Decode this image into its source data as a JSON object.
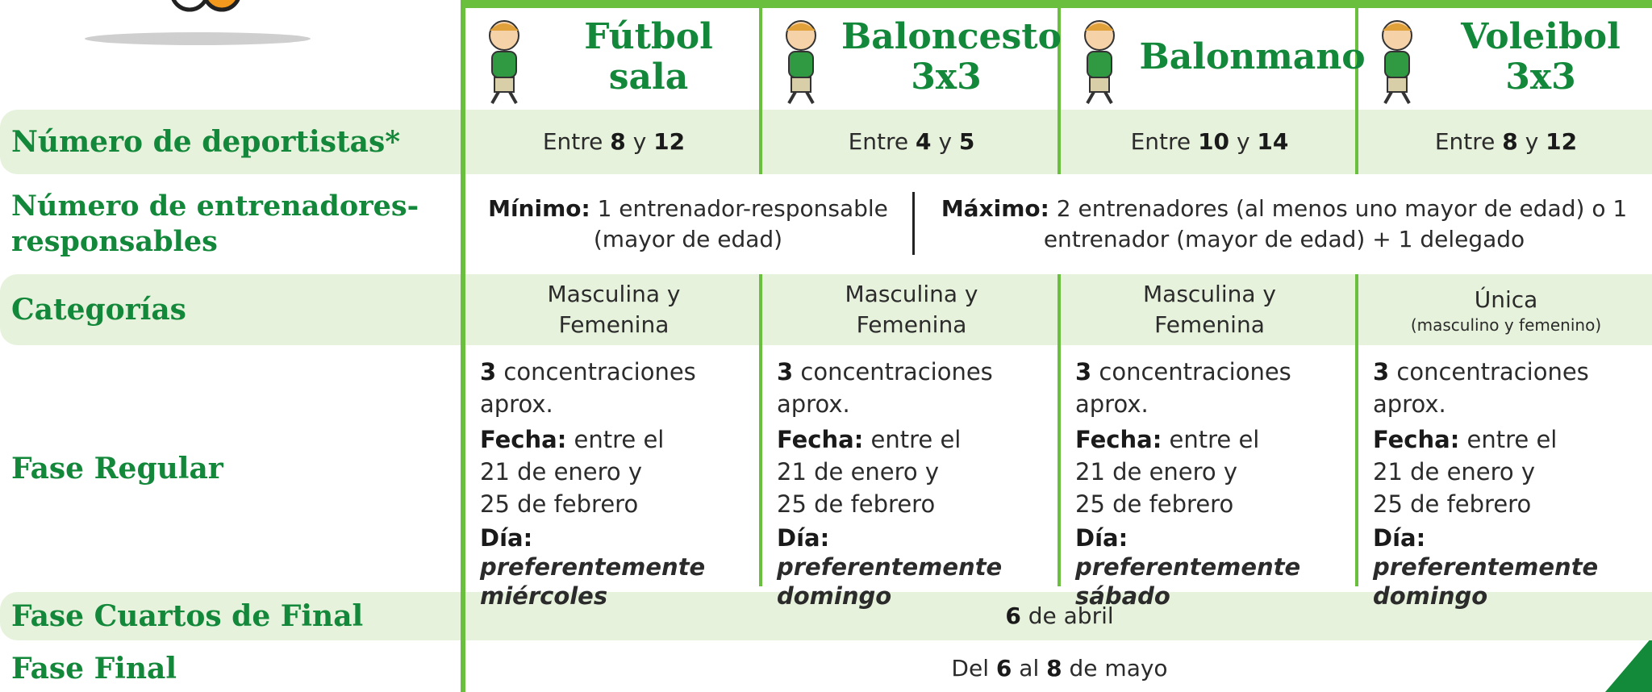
{
  "sports": [
    "Fútbol sala",
    "Baloncesto 3x3",
    "Balonmano",
    "Voleibol 3x3"
  ],
  "row_labels": [
    "Número de deportistas*",
    "Número de entrenadores-responsables",
    "Categorías",
    "Fase Regular",
    "Fase Cuartos de Final",
    "Fase Final"
  ],
  "players": [
    [
      "Entre",
      "8",
      "y",
      "12"
    ],
    [
      "Entre",
      "4",
      "y",
      "5"
    ],
    [
      "Entre",
      "10",
      "y",
      "14"
    ],
    [
      "Entre",
      "8",
      "y",
      "12"
    ]
  ],
  "coaches": {
    "minimum": {
      "label": "Mínimo:",
      "text": "1 entrenador-responsable (mayor de edad)"
    },
    "maximum": {
      "label": "Máximo:",
      "text": "2 entrenadores (al menos uno mayor de edad) o 1 entrenador (mayor de edad) + 1 delegado"
    }
  },
  "categories": [
    [
      "Masculina y Femenina"
    ],
    [
      "Masculina y Femenina"
    ],
    [
      "Masculina y Femenina"
    ],
    [
      "Única",
      "(masculino y femenino)"
    ]
  ],
  "regular": [
    {
      "count": "3",
      "count_text": "concentraciones aprox.",
      "date_label": "Fecha:",
      "date_lines": [
        "entre el",
        "21 de enero y",
        "25 de febrero"
      ],
      "day_label": "Día:",
      "day_text": "preferentemente miércoles"
    },
    {
      "count": "3",
      "count_text": "concentraciones aprox.",
      "date_label": "Fecha:",
      "date_lines": [
        "entre el",
        "21 de enero y",
        "25 de febrero"
      ],
      "day_label": "Día:",
      "day_text": "preferentemente domingo"
    },
    {
      "count": "3",
      "count_text": "concentraciones aprox.",
      "date_label": "Fecha:",
      "date_lines": [
        "entre el",
        "21 de enero y",
        "25 de febrero"
      ],
      "day_label": "Día:",
      "day_text": "preferentemente sábado"
    },
    {
      "count": "3",
      "count_text": "concentraciones aprox.",
      "date_label": "Fecha:",
      "date_lines": [
        "entre el",
        "21 de enero y",
        "25 de febrero"
      ],
      "day_label": "Día:",
      "day_text": "preferentemente domingo"
    }
  ],
  "quarter_final": [
    "6",
    "de abril"
  ],
  "final": [
    "Del",
    "6",
    "al",
    "8",
    "de mayo"
  ]
}
